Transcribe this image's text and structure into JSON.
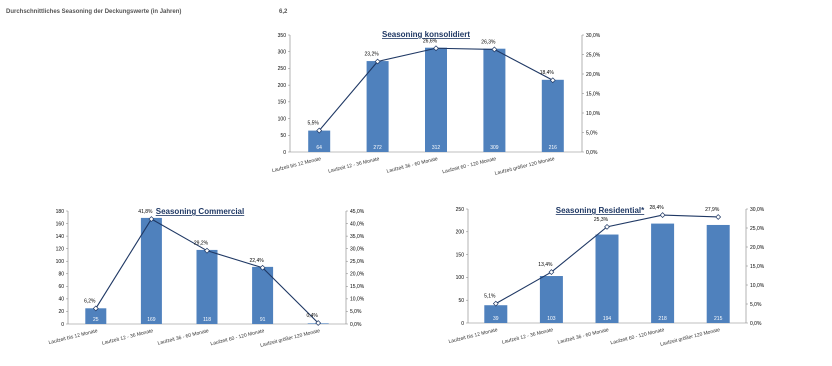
{
  "header": {
    "label": "Durchschnittliches Seasoning der Deckungswerte (in Jahren)",
    "value": "6,2"
  },
  "colors": {
    "bar": "#4f81bd",
    "line": "#1f3864",
    "marker_fill": "#ffffff",
    "title": "#1f3864"
  },
  "chart_data": [
    {
      "type": "bar",
      "title": "Seasoning konsolidiert",
      "categories": [
        "Laufzeit bis 12 Monate",
        "Laufzeit 12 - 36 Monate",
        "Laufzeit 36 - 60 Monate",
        "Laufzeit 60 - 120 Monate",
        "Laufzeit größer 120 Monate"
      ],
      "bar_values": [
        64,
        272,
        312,
        309,
        216
      ],
      "bar_labels": [
        "64",
        "272",
        "312",
        "309",
        "216"
      ],
      "line_values": [
        5.5,
        23.2,
        26.6,
        26.3,
        18.4
      ],
      "line_labels": [
        "5,5%",
        "23,2%",
        "26,6%",
        "26,3%",
        "18,4%"
      ],
      "left_ylim": [
        0,
        350
      ],
      "left_ticks": [
        "0",
        "50",
        "100",
        "150",
        "200",
        "250",
        "300",
        "350"
      ],
      "right_ylim": [
        0,
        30
      ],
      "right_ticks": [
        "0,0%",
        "5,0%",
        "10,0%",
        "15,0%",
        "20,0%",
        "25,0%",
        "30,0%"
      ]
    },
    {
      "type": "bar",
      "title": "Seasoning Commercial",
      "categories": [
        "Laufzeit bis 12 Monate",
        "Laufzeit 12 - 36 Monate",
        "Laufzeit 36 - 60 Monate",
        "Laufzeit 60 - 120 Monate",
        "Laufzeit größer 120 Monate"
      ],
      "bar_values": [
        25,
        169,
        118,
        91,
        1
      ],
      "bar_labels": [
        "25",
        "169",
        "118",
        "91",
        ""
      ],
      "line_values": [
        6.2,
        41.8,
        29.2,
        22.4,
        0.4
      ],
      "line_labels": [
        "6,2%",
        "41,8%",
        "29,2%",
        "22,4%",
        "0,4%"
      ],
      "left_ylim": [
        0,
        180
      ],
      "left_ticks": [
        "0",
        "20",
        "40",
        "60",
        "80",
        "100",
        "120",
        "140",
        "160",
        "180"
      ],
      "right_ylim": [
        0,
        45
      ],
      "right_ticks": [
        "0,0%",
        "5,0%",
        "10,0%",
        "15,0%",
        "20,0%",
        "25,0%",
        "30,0%",
        "35,0%",
        "40,0%",
        "45,0%"
      ]
    },
    {
      "type": "bar",
      "title": "Seasoning Residential*",
      "categories": [
        "Laufzeit bis 12 Monate",
        "Laufzeit 12 - 36 Monate",
        "Laufzeit 36 - 60 Monate",
        "Laufzeit 60 - 120 Monate",
        "Laufzeit größer 120 Monate"
      ],
      "bar_values": [
        39,
        103,
        194,
        218,
        215
      ],
      "bar_labels": [
        "39",
        "103",
        "194",
        "218",
        "215"
      ],
      "line_values": [
        5.1,
        13.4,
        25.3,
        28.4,
        27.9
      ],
      "line_labels": [
        "5,1%",
        "13,4%",
        "25,3%",
        "28,4%",
        "27,9%"
      ],
      "left_ylim": [
        0,
        250
      ],
      "left_ticks": [
        "0",
        "50",
        "100",
        "150",
        "200",
        "250"
      ],
      "right_ylim": [
        0,
        30
      ],
      "right_ticks": [
        "0,0%",
        "5,0%",
        "10,0%",
        "15,0%",
        "20,0%",
        "25,0%",
        "30,0%"
      ]
    }
  ]
}
